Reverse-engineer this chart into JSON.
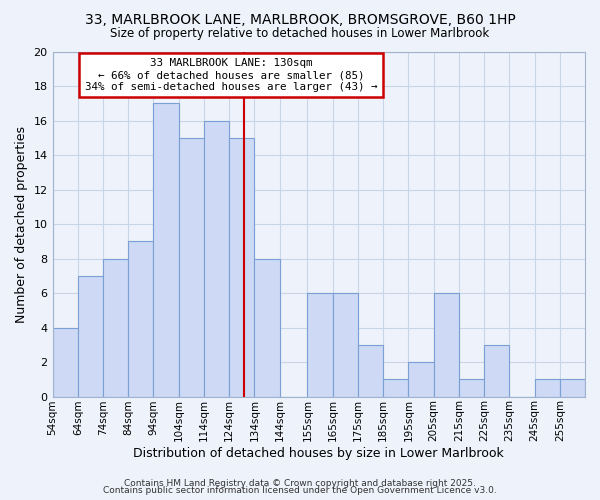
{
  "title1": "33, MARLBROOK LANE, MARLBROOK, BROMSGROVE, B60 1HP",
  "title2": "Size of property relative to detached houses in Lower Marlbrook",
  "xlabel": "Distribution of detached houses by size in Lower Marlbrook",
  "ylabel": "Number of detached properties",
  "bin_labels": [
    "54sqm",
    "64sqm",
    "74sqm",
    "84sqm",
    "94sqm",
    "104sqm",
    "114sqm",
    "124sqm",
    "134sqm",
    "144sqm",
    "155sqm",
    "165sqm",
    "175sqm",
    "185sqm",
    "195sqm",
    "205sqm",
    "215sqm",
    "225sqm",
    "235sqm",
    "245sqm",
    "255sqm"
  ],
  "bin_values": [
    4,
    7,
    8,
    9,
    17,
    15,
    16,
    15,
    8,
    0,
    6,
    6,
    3,
    1,
    2,
    6,
    1,
    3,
    0,
    1,
    1
  ],
  "bar_color": "#cdd9f5",
  "bar_edge_color": "#7a9fd4",
  "reference_line_x": 130,
  "bin_left_edges": [
    54,
    64,
    74,
    84,
    94,
    104,
    114,
    124,
    134,
    144,
    155,
    165,
    175,
    185,
    195,
    205,
    215,
    225,
    235,
    245,
    255
  ],
  "bin_width": 10,
  "ylim": [
    0,
    20
  ],
  "yticks": [
    0,
    2,
    4,
    6,
    8,
    10,
    12,
    14,
    16,
    18,
    20
  ],
  "annotation_title": "33 MARLBROOK LANE: 130sqm",
  "annotation_line1": "← 66% of detached houses are smaller (85)",
  "annotation_line2": "34% of semi-detached houses are larger (43) →",
  "annotation_box_color": "#ffffff",
  "annotation_box_edge": "#cc0000",
  "ref_line_color": "#cc0000",
  "grid_color": "#c8d4e8",
  "background_color": "#eef2fa",
  "plot_bg_color": "#eef2fa",
  "footer1": "Contains HM Land Registry data © Crown copyright and database right 2025.",
  "footer2": "Contains public sector information licensed under the Open Government Licence v3.0.",
  "spine_color": "#a0b4d0"
}
